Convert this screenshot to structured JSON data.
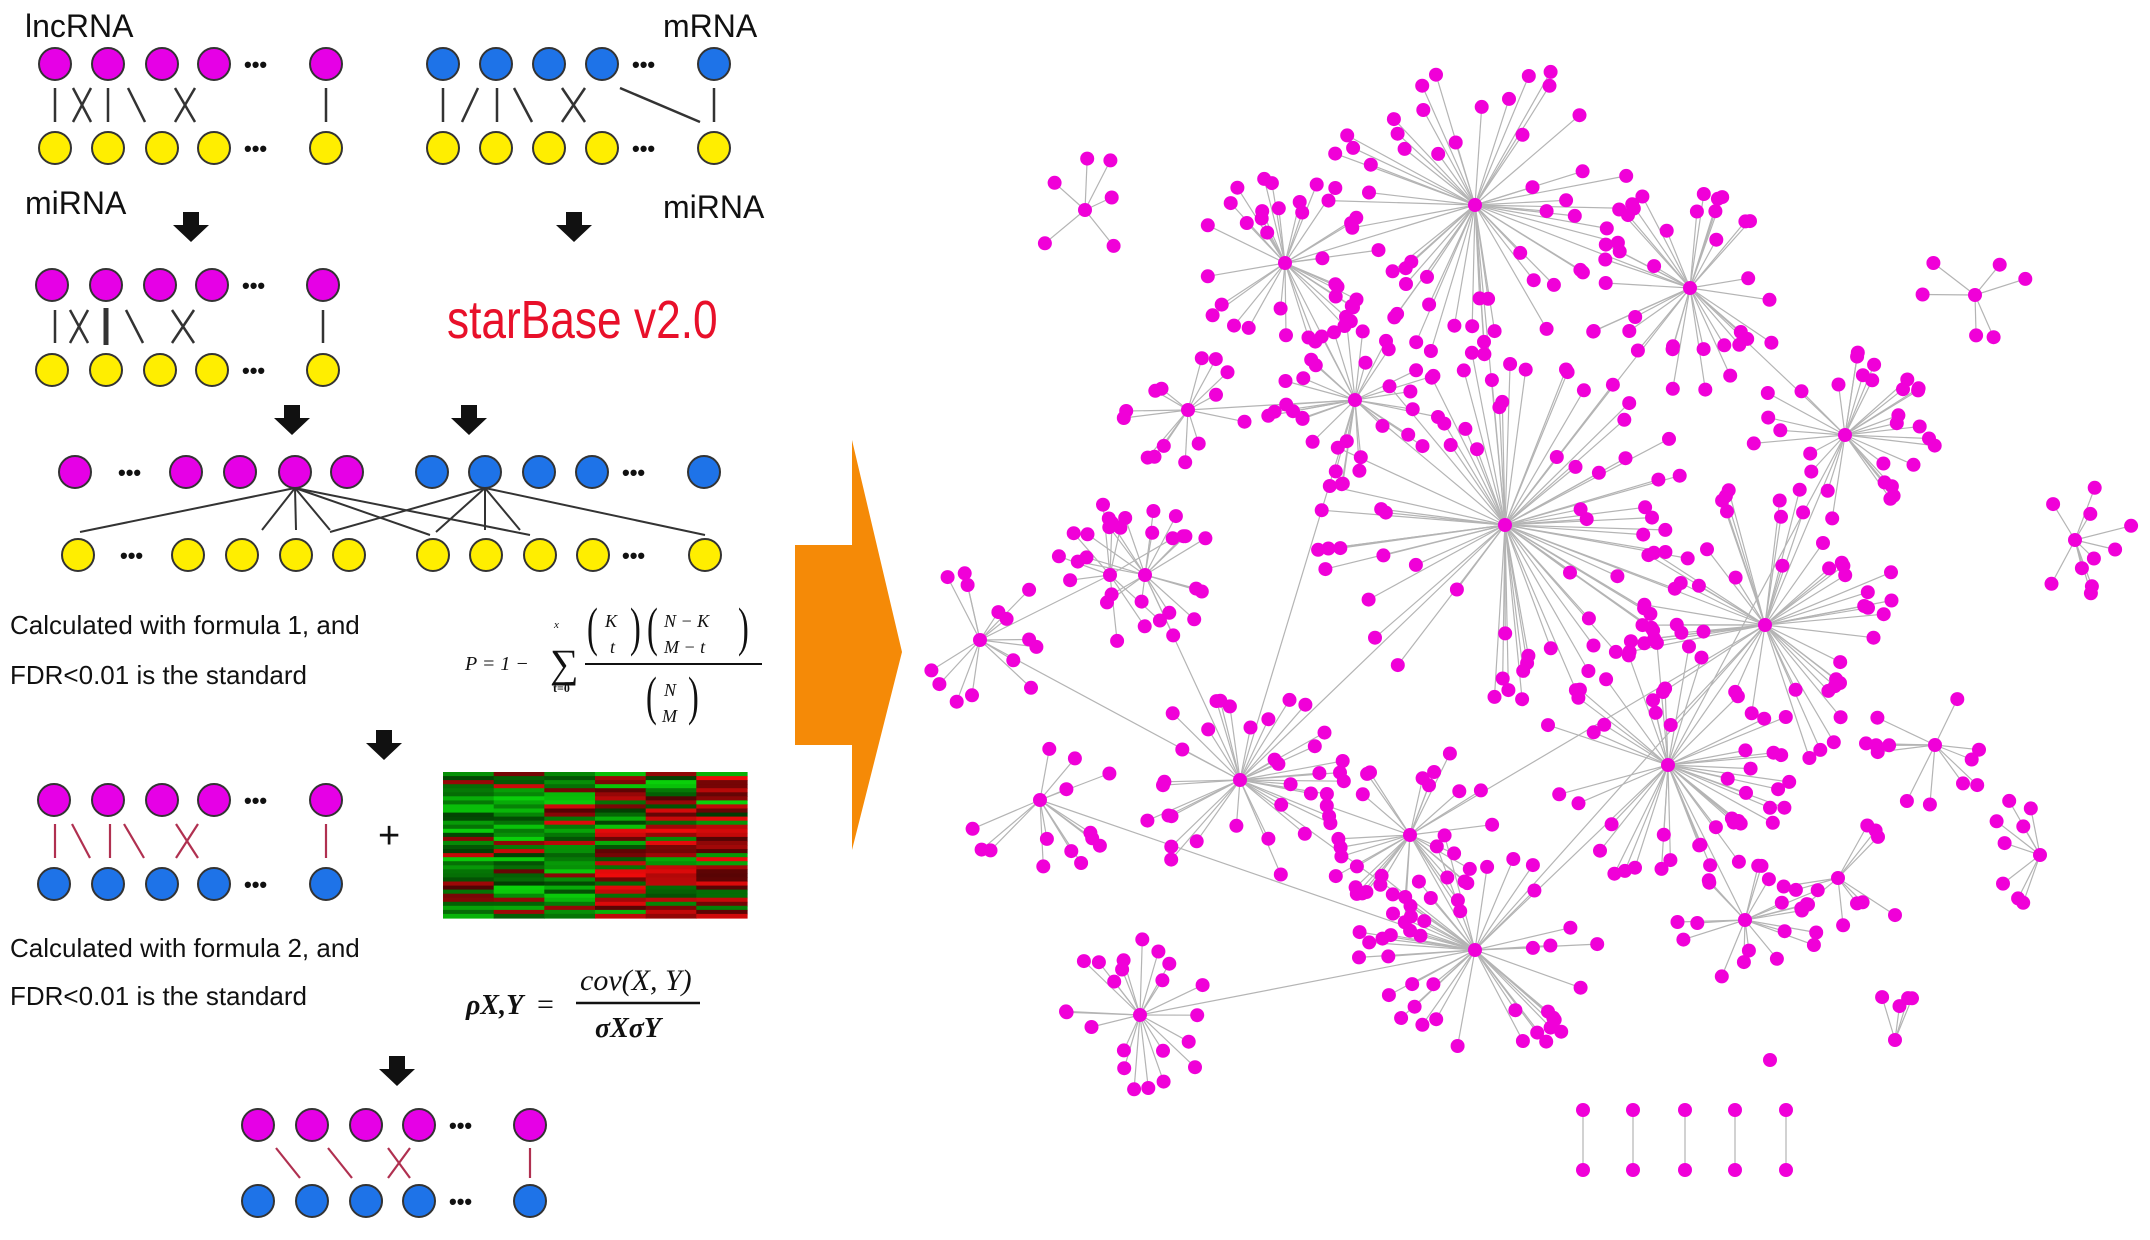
{
  "workflow": {
    "label_lncrna": "lncRNA",
    "label_mrna": "mRNA",
    "label_mirna_left": "miRNA",
    "label_mirna_right": "miRNA",
    "database_name": "starBase v2.0",
    "step1_text_line1": "Calculated with formula 1, and",
    "step1_text_line2": "FDR<0.01 is the standard",
    "step2_text_line1": "Calculated with formula 2, and",
    "step2_text_line2": "FDR<0.01 is the standard",
    "plus_sign": "+",
    "ellipsis": "•••"
  },
  "formula1": {
    "lhs": "P = 1 −",
    "sum_top": "x",
    "sum_bottom": "t=0",
    "binom1_top": "K",
    "binom1_bottom": "t",
    "binom2_top": "N − K",
    "binom2_bottom": "M − t",
    "binom3_top": "N",
    "binom3_bottom": "M"
  },
  "formula2": {
    "lhs": "ρX,Y",
    "equals": "=",
    "numerator": "cov(X, Y)",
    "denominator": "σXσY"
  },
  "colors": {
    "lncrna": "#e600e6",
    "mrna": "#1e73e8",
    "mirna": "#ffee00",
    "database_red": "#e8102a",
    "arrow_orange": "#f58a07",
    "network_node": "#f000d8",
    "network_edge": "#b4b4b4",
    "heatmap_red": "#d21010",
    "heatmap_green": "#14a014"
  },
  "icons": {
    "step_arrow": "down-arrow-icon",
    "transition_arrow": "right-arrow-icon"
  }
}
